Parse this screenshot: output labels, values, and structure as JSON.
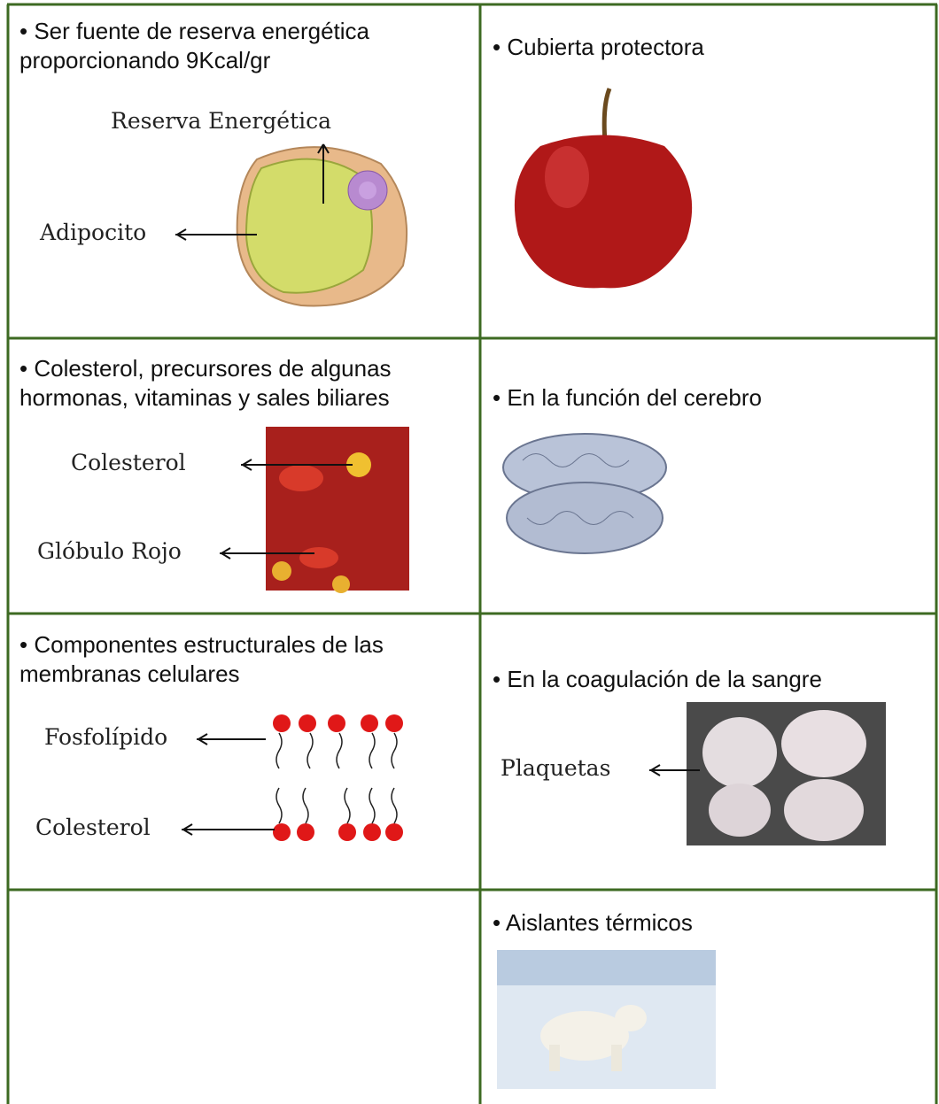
{
  "table": {
    "rows": [
      [
        {
          "text": "• Ser fuente de reserva energética proporcionando 9Kcal/gr",
          "labels": [
            "Reserva Energética",
            "Adipocito"
          ]
        },
        {
          "text": "• Cubierta protectora"
        }
      ],
      [
        {
          "text": "• Colesterol, precursores de algunas hormonas, vitaminas y sales biliares",
          "labels": [
            "Colesterol",
            "Glóbulo Rojo"
          ]
        },
        {
          "text": "• En la función del cerebro"
        }
      ],
      [
        {
          "text": "• Componentes estructurales de las membranas celulares",
          "labels": [
            "Fosfolípido",
            "Colesterol"
          ]
        },
        {
          "text": "• En la coagulación de la sangre",
          "labels": [
            "Plaquetas"
          ]
        }
      ],
      [
        null,
        {
          "text": "• Aislantes térmicos"
        }
      ]
    ]
  }
}
